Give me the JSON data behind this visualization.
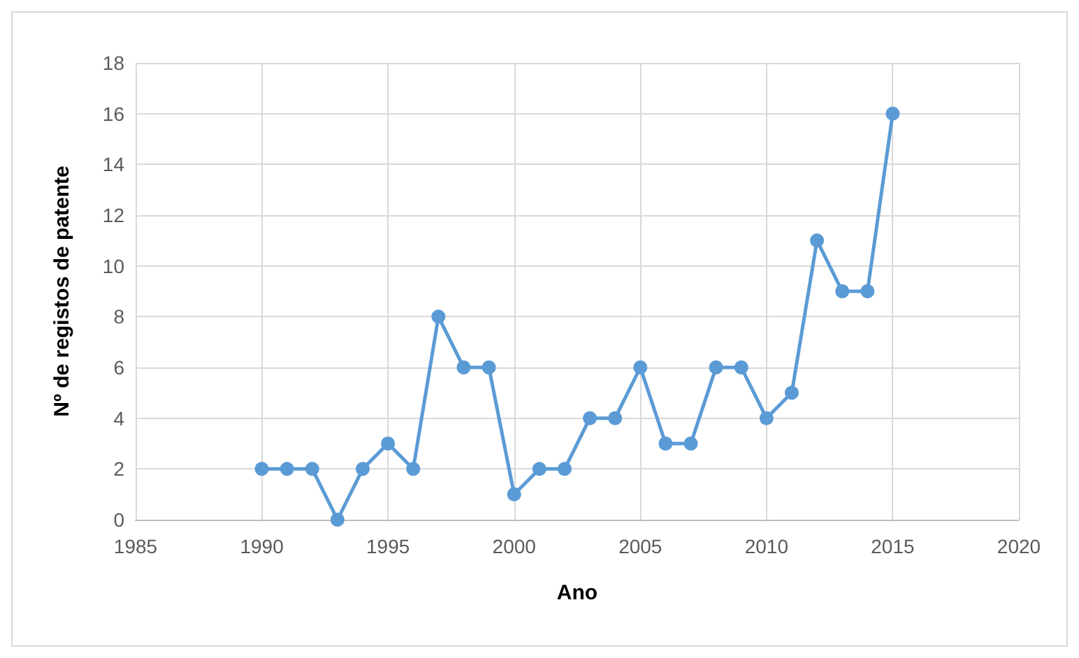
{
  "chart_data": {
    "type": "line",
    "xlabel": "Ano",
    "ylabel": "Nº de registos de patente",
    "x": [
      1990,
      1991,
      1992,
      1993,
      1994,
      1995,
      1996,
      1997,
      1998,
      1999,
      2000,
      2001,
      2002,
      2003,
      2004,
      2005,
      2006,
      2007,
      2008,
      2009,
      2010,
      2011,
      2012,
      2013,
      2014,
      2015
    ],
    "series": [
      {
        "color": "#5b9bd5",
        "values": [
          2,
          2,
          2,
          0,
          2,
          3,
          2,
          8,
          6,
          6,
          1,
          2,
          2,
          4,
          4,
          6,
          3,
          3,
          6,
          6,
          4,
          5,
          11,
          9,
          9,
          16
        ]
      }
    ],
    "xlim": [
      1985,
      2020
    ],
    "xticks": [
      1985,
      1990,
      1995,
      2000,
      2005,
      2010,
      2015,
      2020
    ],
    "ylim": [
      0,
      18
    ],
    "yticks": [
      0,
      2,
      4,
      6,
      8,
      10,
      12,
      14,
      16,
      18
    ],
    "grid": true,
    "marker": "circle",
    "line_style": "solid"
  }
}
